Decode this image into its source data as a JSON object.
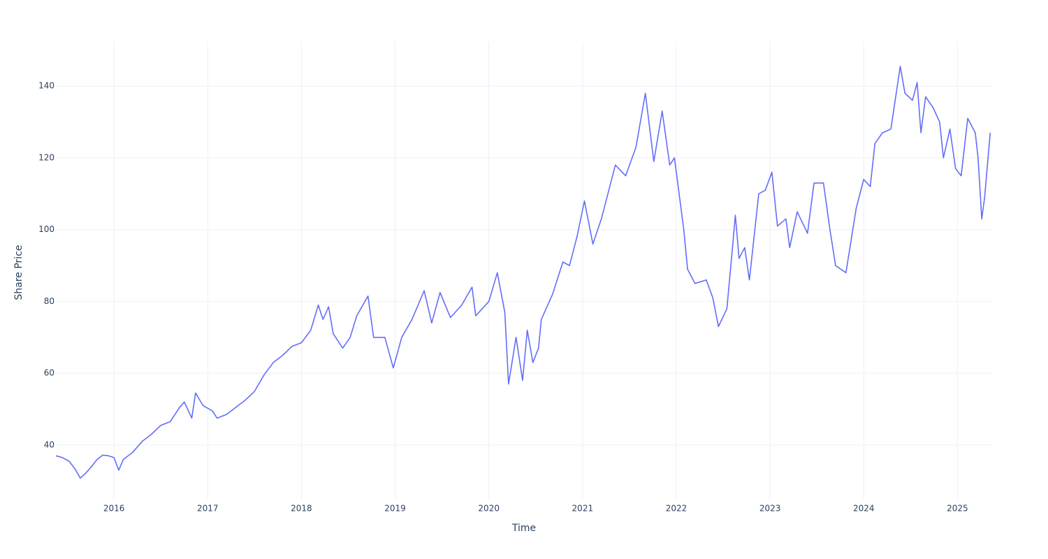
{
  "chart_data": {
    "type": "line",
    "x_label": "Time",
    "y_label": "Share Price",
    "xlim": [
      2015.38,
      2025.37
    ],
    "xticks": [
      2016,
      2017,
      2018,
      2019,
      2020,
      2021,
      2022,
      2023,
      2024,
      2025
    ],
    "ylim": [
      24.8,
      152.3
    ],
    "yticks": [
      40,
      60,
      80,
      100,
      120,
      140
    ],
    "grid": true,
    "series": [
      {
        "name": "Share Price",
        "color": "#636efa",
        "x": [
          2015.38,
          2015.45,
          2015.52,
          2015.58,
          2015.64,
          2015.7,
          2015.76,
          2015.82,
          2015.88,
          2015.94,
          2016.0,
          2016.05,
          2016.1,
          2016.2,
          2016.3,
          2016.4,
          2016.5,
          2016.6,
          2016.7,
          2016.75,
          2016.83,
          2016.87,
          2016.95,
          2017.05,
          2017.1,
          2017.2,
          2017.3,
          2017.4,
          2017.5,
          2017.6,
          2017.7,
          2017.8,
          2017.9,
          2018.0,
          2018.1,
          2018.18,
          2018.23,
          2018.29,
          2018.34,
          2018.44,
          2018.52,
          2018.59,
          2018.71,
          2018.77,
          2018.89,
          2018.98,
          2019.07,
          2019.18,
          2019.31,
          2019.39,
          2019.48,
          2019.59,
          2019.71,
          2019.82,
          2019.86,
          2020.0,
          2020.09,
          2020.17,
          2020.21,
          2020.29,
          2020.36,
          2020.41,
          2020.47,
          2020.53,
          2020.56,
          2020.68,
          2020.79,
          2020.86,
          2020.94,
          2021.02,
          2021.11,
          2021.2,
          2021.35,
          2021.46,
          2021.57,
          2021.67,
          2021.76,
          2021.85,
          2021.93,
          2021.98,
          2022.08,
          2022.12,
          2022.2,
          2022.32,
          2022.39,
          2022.45,
          2022.54,
          2022.6,
          2022.63,
          2022.67,
          2022.73,
          2022.78,
          2022.88,
          2022.95,
          2023.02,
          2023.08,
          2023.17,
          2023.21,
          2023.29,
          2023.4,
          2023.47,
          2023.57,
          2023.64,
          2023.7,
          2023.81,
          2023.92,
          2024.0,
          2024.07,
          2024.12,
          2024.2,
          2024.29,
          2024.39,
          2024.44,
          2024.52,
          2024.57,
          2024.61,
          2024.66,
          2024.74,
          2024.81,
          2024.85,
          2024.92,
          2024.98,
          2025.04,
          2025.11,
          2025.19,
          2025.22,
          2025.26,
          2025.29,
          2025.35
        ],
        "values": [
          37,
          36.5,
          35.5,
          33.5,
          30.8,
          32.2,
          34,
          36,
          37.2,
          37,
          36.5,
          33,
          36,
          38,
          41,
          43,
          45.5,
          46.5,
          50.5,
          52,
          47.5,
          54.5,
          51,
          49.5,
          47.5,
          48.5,
          50.5,
          52.5,
          55,
          59.5,
          63,
          65,
          67.5,
          68.5,
          72,
          79,
          75,
          78.5,
          71,
          67,
          70,
          76,
          81.5,
          70,
          70,
          61.5,
          70,
          75,
          83,
          74,
          82.5,
          75.5,
          79,
          84,
          76,
          80,
          88,
          77,
          57,
          70,
          58,
          72,
          63,
          67,
          75,
          82,
          91,
          90,
          98,
          108,
          96,
          103,
          118,
          115,
          123,
          138,
          119,
          133,
          118,
          120,
          100,
          89,
          85,
          86,
          81,
          73,
          78,
          95,
          104,
          92,
          95,
          86,
          110,
          111,
          116,
          101,
          103,
          95,
          105,
          99,
          113,
          113,
          100,
          90,
          88,
          106,
          114,
          112,
          124,
          127,
          128,
          145.5,
          138,
          136,
          141,
          127,
          137,
          134,
          130,
          120,
          128,
          117,
          115,
          131,
          127,
          120,
          103,
          109,
          127
        ]
      }
    ]
  }
}
